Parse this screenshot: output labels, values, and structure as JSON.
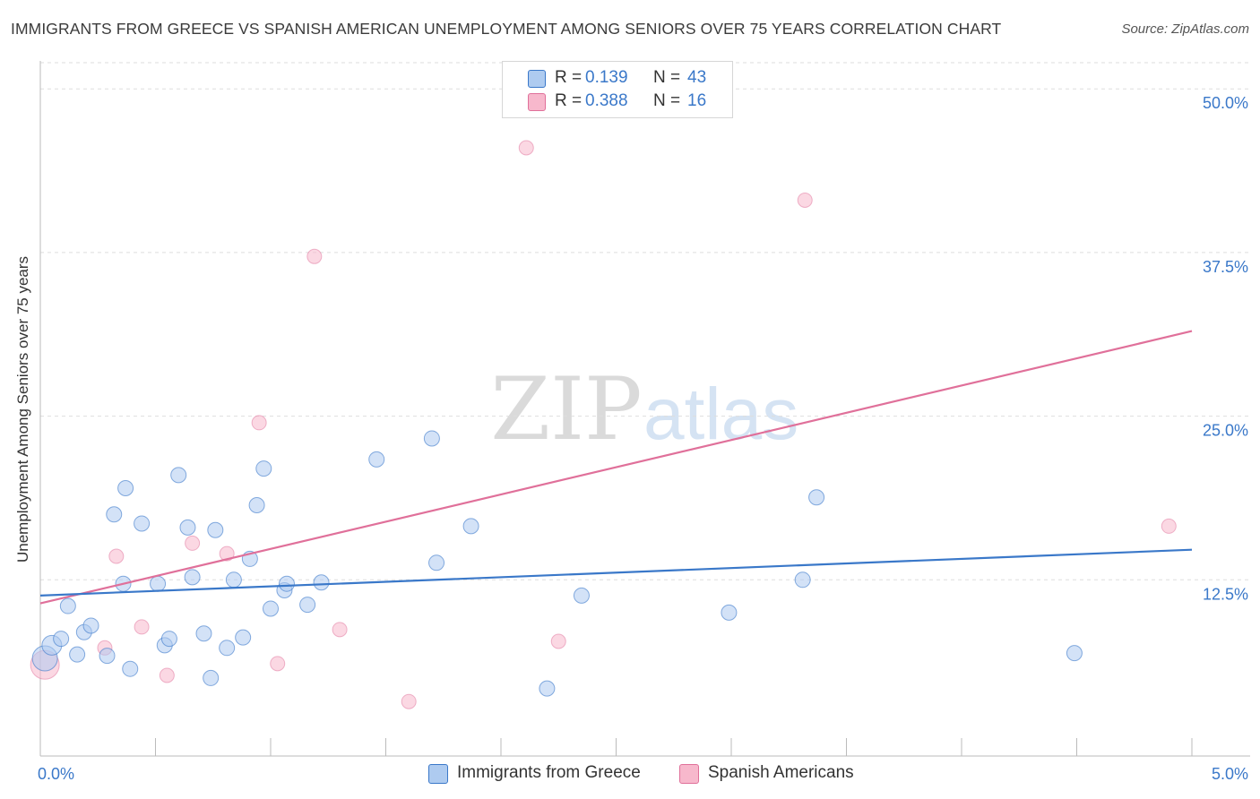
{
  "title": "IMMIGRANTS FROM GREECE VS SPANISH AMERICAN UNEMPLOYMENT AMONG SENIORS OVER 75 YEARS CORRELATION CHART",
  "source": "Source: ZipAtlas.com",
  "watermark": {
    "zip": "ZIP",
    "atlas": "atlas"
  },
  "legend": {
    "rows": [
      {
        "r_label": "R =",
        "r_value": "0.139",
        "n_label": "N =",
        "n_value": "43",
        "color": "#aecbf0"
      },
      {
        "r_label": "R =",
        "r_value": "0.388",
        "n_label": "N =",
        "n_value": "16",
        "color": "#f7b8cc"
      }
    ]
  },
  "bottom_legend": {
    "series1": "Immigrants from Greece",
    "series2": "Spanish Americans"
  },
  "chart_data": {
    "type": "scatter",
    "title": "IMMIGRANTS FROM GREECE VS SPANISH AMERICAN UNEMPLOYMENT AMONG SENIORS OVER 75 YEARS CORRELATION CHART",
    "xlabel": "",
    "ylabel": "Unemployment Among Seniors over 75 years",
    "xlim": [
      0,
      5
    ],
    "ylim": [
      0,
      52
    ],
    "x_tick_labels": [
      "0.0%",
      "5.0%"
    ],
    "x_tick_values": [
      0,
      5
    ],
    "y_tick_labels": [
      "12.5%",
      "25.0%",
      "37.5%",
      "50.0%"
    ],
    "y_tick_values": [
      12.5,
      25,
      37.5,
      50
    ],
    "colors": {
      "series1": "#3a78c9",
      "series2": "#e0709a",
      "series1_fill": "#aecbf0",
      "series2_fill": "#f7b8cc",
      "tick_label": "#3a78c9"
    },
    "series": [
      {
        "name": "Immigrants from Greece",
        "R": 0.139,
        "N": 43,
        "trendline": [
          [
            0,
            11.3
          ],
          [
            5,
            14.8
          ]
        ],
        "points": [
          [
            0.02,
            6.5
          ],
          [
            0.05,
            7.5
          ],
          [
            0.09,
            8.0
          ],
          [
            0.12,
            10.5
          ],
          [
            0.16,
            6.8
          ],
          [
            0.19,
            8.5
          ],
          [
            0.22,
            9.0
          ],
          [
            0.29,
            6.7
          ],
          [
            0.37,
            19.5
          ],
          [
            0.32,
            17.5
          ],
          [
            0.36,
            12.2
          ],
          [
            0.39,
            5.7
          ],
          [
            0.44,
            16.8
          ],
          [
            0.51,
            12.2
          ],
          [
            0.54,
            7.5
          ],
          [
            0.56,
            8.0
          ],
          [
            0.6,
            20.5
          ],
          [
            0.64,
            16.5
          ],
          [
            0.66,
            12.7
          ],
          [
            0.71,
            8.4
          ],
          [
            0.74,
            5.0
          ],
          [
            0.76,
            16.3
          ],
          [
            0.81,
            7.3
          ],
          [
            0.84,
            12.5
          ],
          [
            0.88,
            8.1
          ],
          [
            0.91,
            14.1
          ],
          [
            0.94,
            18.2
          ],
          [
            0.97,
            21.0
          ],
          [
            1.0,
            10.3
          ],
          [
            1.06,
            11.7
          ],
          [
            1.07,
            12.2
          ],
          [
            1.16,
            10.6
          ],
          [
            1.22,
            12.3
          ],
          [
            1.46,
            21.7
          ],
          [
            1.7,
            23.3
          ],
          [
            1.72,
            13.8
          ],
          [
            1.87,
            16.6
          ],
          [
            2.2,
            4.2
          ],
          [
            2.35,
            11.3
          ],
          [
            2.99,
            10.0
          ],
          [
            3.31,
            12.5
          ],
          [
            3.37,
            18.8
          ],
          [
            4.49,
            6.9
          ]
        ]
      },
      {
        "name": "Spanish Americans",
        "R": 0.388,
        "N": 16,
        "trendline": [
          [
            0,
            10.7
          ],
          [
            5,
            31.5
          ]
        ],
        "points": [
          [
            0.02,
            6.0
          ],
          [
            0.28,
            7.3
          ],
          [
            0.33,
            14.3
          ],
          [
            0.44,
            8.9
          ],
          [
            0.55,
            5.2
          ],
          [
            0.66,
            15.3
          ],
          [
            0.81,
            14.5
          ],
          [
            0.95,
            24.5
          ],
          [
            1.03,
            6.1
          ],
          [
            1.19,
            37.2
          ],
          [
            1.3,
            8.7
          ],
          [
            1.6,
            3.2
          ],
          [
            2.11,
            45.5
          ],
          [
            2.25,
            7.8
          ],
          [
            3.32,
            41.5
          ],
          [
            4.9,
            16.6
          ]
        ]
      }
    ]
  }
}
